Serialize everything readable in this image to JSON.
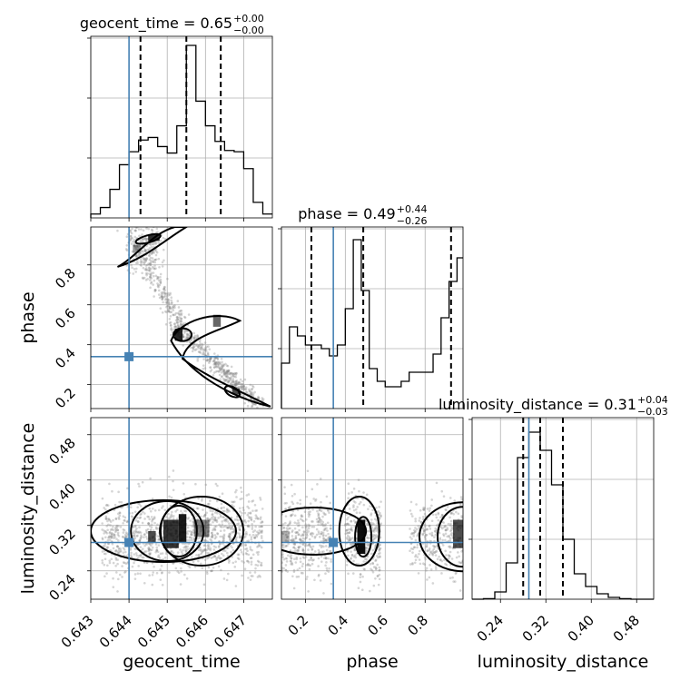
{
  "chart_data": {
    "type": "corner",
    "parameters": [
      "geocent_time",
      "phase",
      "luminosity_distance"
    ],
    "truths": {
      "geocent_time": 0.644,
      "phase": 0.34,
      "luminosity_distance": 0.29
    },
    "ranges": {
      "geocent_time": [
        0.643,
        0.64775
      ],
      "phase": [
        0.08,
        0.99
      ],
      "luminosity_distance": [
        0.19,
        0.51
      ]
    },
    "ticks": {
      "geocent_time": [
        0.643,
        0.644,
        0.645,
        0.646,
        0.647
      ],
      "phase": [
        0.2,
        0.4,
        0.6,
        0.8
      ],
      "luminosity_distance": [
        0.24,
        0.32,
        0.4,
        0.48
      ]
    },
    "tick_labels": {
      "geocent_time": [
        "0.643",
        "0.644",
        "0.645",
        "0.646",
        "0.647"
      ],
      "phase": [
        "0.2",
        "0.4",
        "0.6",
        "0.8"
      ],
      "luminosity_distance": [
        "0.24",
        "0.32",
        "0.40",
        "0.48"
      ]
    },
    "titles": [
      {
        "param": "geocent_time",
        "text": "geocent_time = 0.65",
        "plus": "+0.00",
        "minus": "−0.00"
      },
      {
        "param": "phase",
        "text": "phase = 0.49",
        "plus": "+0.44",
        "minus": "−0.26"
      },
      {
        "param": "luminosity_distance",
        "text": "luminosity_distance = 0.31",
        "plus": "+0.04",
        "minus": "−0.03"
      }
    ],
    "quantiles": {
      "geocent_time": [
        0.6443,
        0.6455,
        0.6464
      ],
      "phase": [
        0.23,
        0.49,
        0.93
      ],
      "luminosity_distance": [
        0.28,
        0.31,
        0.35
      ]
    },
    "histograms": {
      "geocent_time": {
        "edges": [
          0.643,
          0.64325,
          0.6435,
          0.64375,
          0.644,
          0.64425,
          0.6445,
          0.64475,
          0.645,
          0.64525,
          0.6455,
          0.64575,
          0.646,
          0.64625,
          0.6465,
          0.64675,
          0.647,
          0.64725,
          0.6475,
          0.64775
        ],
        "counts": [
          3,
          8,
          22,
          41,
          51,
          60,
          62,
          55,
          50,
          71,
          133,
          90,
          71,
          59,
          52,
          51,
          38,
          12,
          3
        ],
        "ymax": 140
      },
      "phase": {
        "edges": [
          0.08,
          0.12,
          0.16,
          0.2,
          0.24,
          0.28,
          0.32,
          0.36,
          0.4,
          0.44,
          0.48,
          0.52,
          0.56,
          0.6,
          0.64,
          0.68,
          0.72,
          0.76,
          0.8,
          0.84,
          0.88,
          0.92,
          0.96,
          0.99
        ],
        "counts": [
          25,
          45,
          40,
          35,
          35,
          33,
          29,
          35,
          55,
          93,
          65,
          22,
          15,
          12,
          12,
          15,
          20,
          20,
          20,
          30,
          50,
          70,
          83
        ],
        "ymax": 100
      },
      "luminosity_distance": {
        "edges": [
          0.19,
          0.21,
          0.23,
          0.25,
          0.27,
          0.29,
          0.31,
          0.33,
          0.35,
          0.37,
          0.39,
          0.41,
          0.43,
          0.45,
          0.47,
          0.49,
          0.51
        ],
        "counts": [
          0,
          0.3,
          4,
          20,
          78,
          92,
          82,
          63,
          33,
          14,
          7,
          3,
          1,
          0.3,
          0,
          0
        ],
        "ymax": 100
      }
    },
    "grid": true
  }
}
